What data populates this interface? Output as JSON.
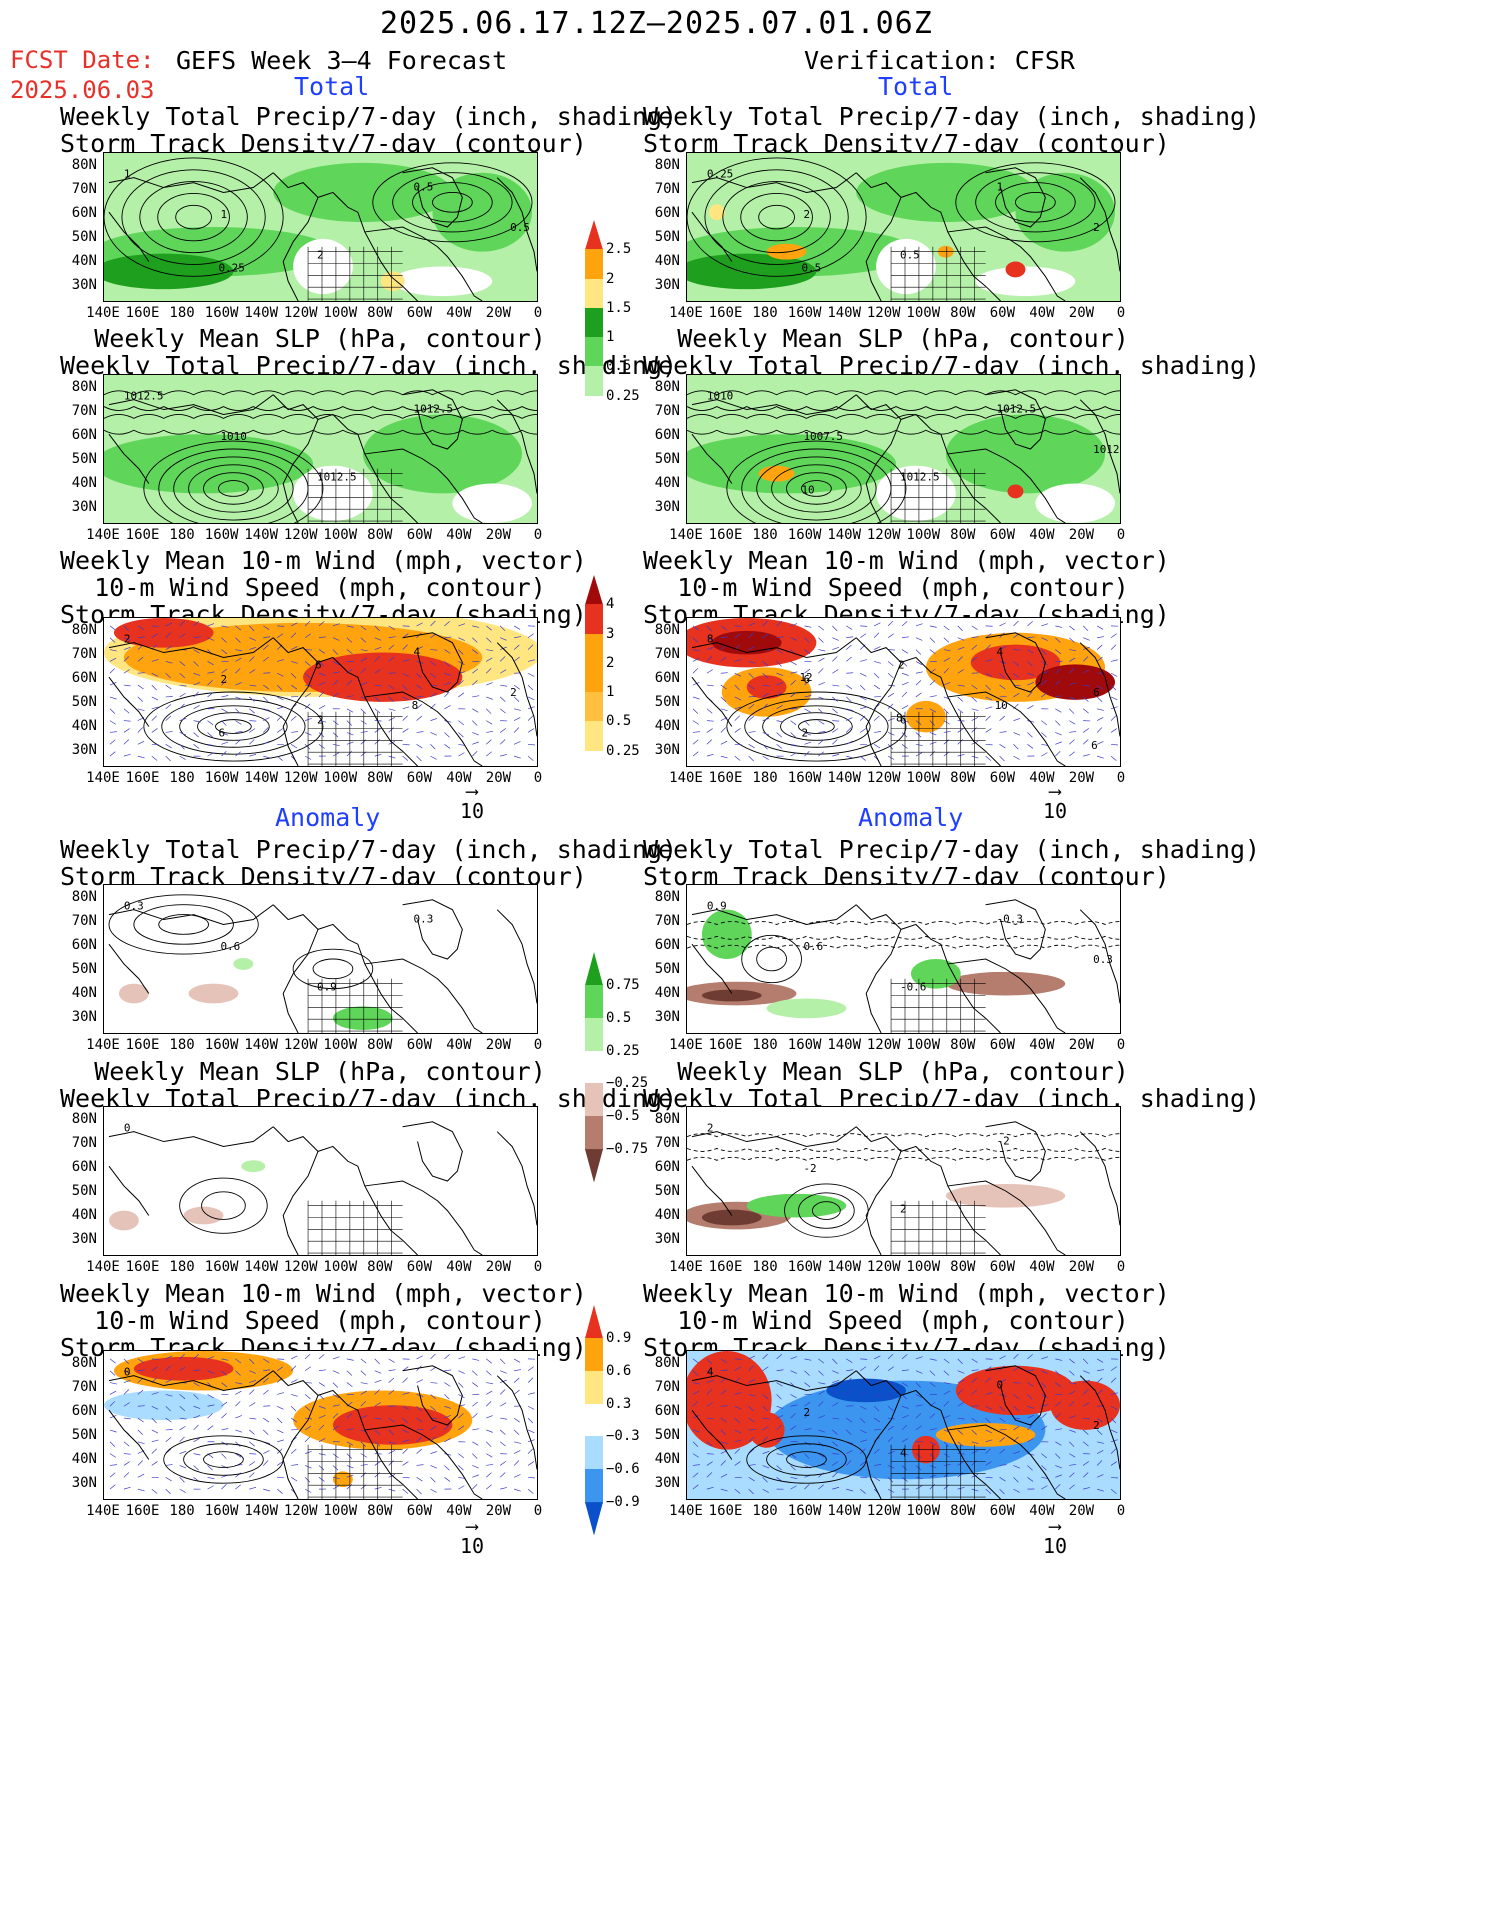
{
  "header": {
    "date_range": "2025.06.17.12Z–2025.07.01.06Z",
    "fcst_label": "FCST Date:",
    "fcst_date": "2025.06.03",
    "left_title": "GEFS Week 3–4 Forecast",
    "right_title": "Verification: CFSR"
  },
  "sections": {
    "total": "Total",
    "anomaly": "Anomaly"
  },
  "titles": {
    "precip_storm_1": "Weekly Total Precip/7-day (inch, shading)",
    "precip_storm_2": "Storm Track Density/7-day (contour)",
    "slp_1": "Weekly Mean SLP (hPa, contour)",
    "slp_2": "Weekly Total Precip/7-day (inch, shading)",
    "wind_1": "Weekly Mean 10-m Wind (mph, vector)",
    "wind_2": "10-m Wind Speed (mph, contour)",
    "wind_3": "Storm Track Density/7-day (shading)"
  },
  "axes": {
    "lat_labels": [
      "80N",
      "70N",
      "60N",
      "50N",
      "40N",
      "30N"
    ],
    "lon_labels": [
      "140E",
      "160E",
      "180",
      "160W",
      "140W",
      "120W",
      "100W",
      "80W",
      "60W",
      "40W",
      "20W",
      "0"
    ]
  },
  "vector_ref": "10",
  "colorbars": {
    "precip_total": [
      "0.25",
      "0.5",
      "1",
      "1.5",
      "2",
      "2.5"
    ],
    "storm_total": [
      "0.25",
      "0.5",
      "1",
      "2",
      "3",
      "4"
    ],
    "precip_anom": [
      "0.75",
      "0.5",
      "0.25",
      "−0.25",
      "−0.5",
      "−0.75"
    ],
    "storm_anom": [
      "0.9",
      "0.6",
      "0.3",
      "−0.3",
      "−0.6",
      "−0.9"
    ]
  },
  "colors": {
    "green_light": "#b4f0a8",
    "green_mid": "#5fd65a",
    "green_dark": "#1ea01e",
    "yellow": "#ffe680",
    "orange": "#ffa30f",
    "red": "#e6321e",
    "darkred": "#a00a0a",
    "brown_light": "#e6c3b9",
    "brown_mid": "#b47d6e",
    "brown_dark": "#6e3c32",
    "blue_light": "#aadcff",
    "blue_mid": "#3c96f0",
    "blue_dark": "#0a50c8"
  },
  "contour_labels": {
    "p1": [
      "1",
      "1",
      "2",
      "0.5",
      "0.5",
      "0.25"
    ],
    "p2": [
      "0.25",
      "2",
      "0.5",
      "1",
      "2",
      "0.5"
    ],
    "p3": [
      "1012.5",
      "1010",
      "1012.5",
      "1012.5"
    ],
    "p4": [
      "1010",
      "1007.5",
      "1012.5",
      "1012.5",
      "1012.5",
      "10"
    ],
    "p5": [
      "2",
      "2",
      "2",
      "4",
      "2",
      "6",
      "6",
      "8"
    ],
    "p6": [
      "8",
      "6",
      "6",
      "4",
      "6",
      "2",
      "2",
      "10",
      "6",
      "12",
      "8"
    ],
    "p7": [
      "0.3",
      "0.6",
      "0.9",
      "0.3"
    ],
    "p8": [
      "0.9",
      "0.6",
      "-0.6",
      "-0.3",
      "0.3"
    ],
    "p9": [
      "0"
    ],
    "p10": [
      "2",
      "-2",
      "2",
      "-2"
    ],
    "p11": [
      "0"
    ],
    "p12": [
      "4",
      "2",
      "4",
      "0",
      "2"
    ]
  }
}
